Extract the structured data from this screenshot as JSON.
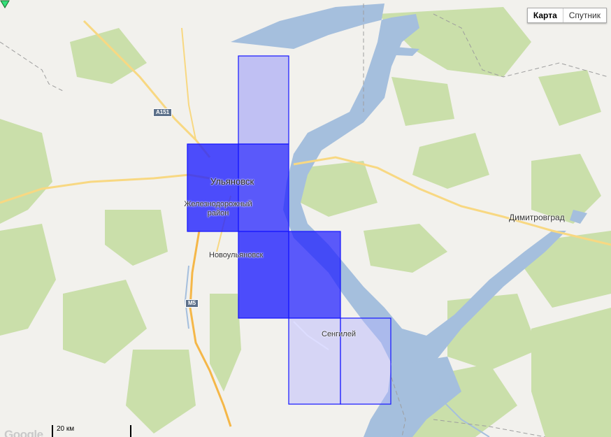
{
  "map": {
    "labels": {
      "ulyanovsk": "Ульяновск",
      "zheleznodorozhny": "Железнодорожный район",
      "novoulyanovsk": "Новоульяновск",
      "dimitrovgrad": "Димитровград",
      "sengiley": "Сенгилей"
    },
    "road_shields": {
      "a151": "A151",
      "m5": "M5"
    },
    "map_type": {
      "map": "Карта",
      "satellite": "Спутник",
      "selected": "map"
    },
    "scale": {
      "label": "20 км"
    },
    "attribution": "Google",
    "colors": {
      "land": "#f2f1ed",
      "water": "#a5bfdd",
      "forest": "#cadfaa",
      "road_major": "#f8d882",
      "road_orange": "#f5b748",
      "overlay_strong": "#2020ff",
      "overlay_light": "#b4b4ff"
    },
    "overlay_tiles": [
      {
        "id": "tile-1",
        "strength": "light"
      },
      {
        "id": "tile-2",
        "strength": "strong"
      },
      {
        "id": "tile-3",
        "strength": "strong"
      },
      {
        "id": "tile-4",
        "strength": "strong"
      },
      {
        "id": "tile-5",
        "strength": "strong"
      },
      {
        "id": "tile-6",
        "strength": "light"
      },
      {
        "id": "tile-7",
        "strength": "light"
      }
    ]
  }
}
